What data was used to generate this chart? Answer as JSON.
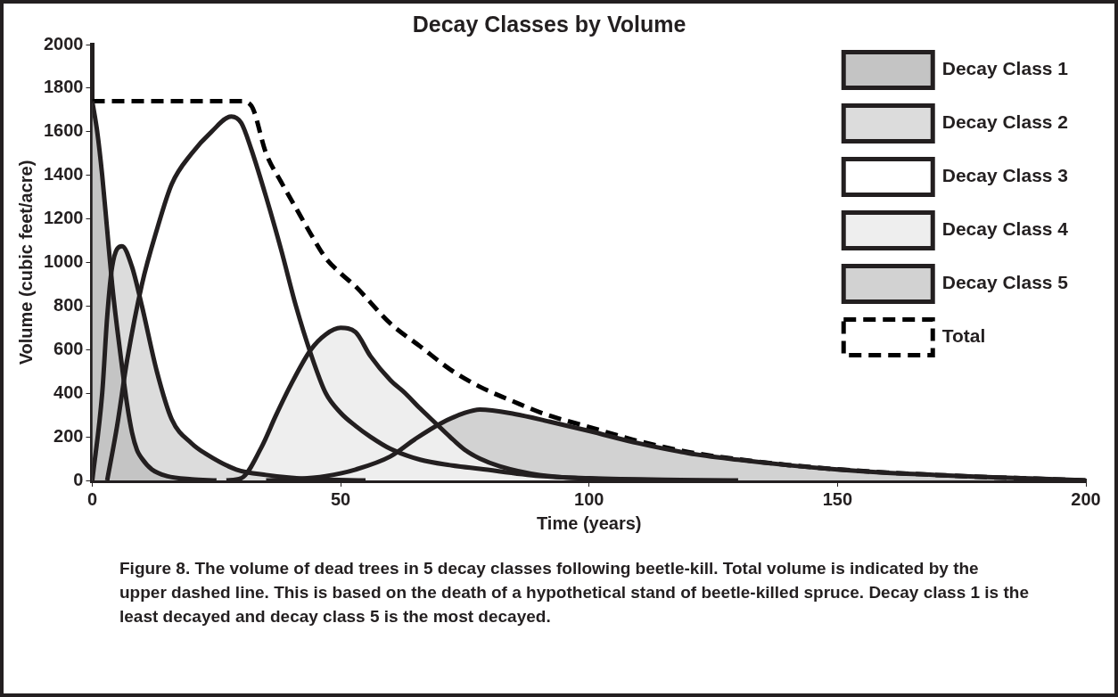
{
  "chart_data": {
    "type": "line",
    "title": "Decay Classes by Volume",
    "xlabel": "Time (years)",
    "ylabel": "Volume (cubic feet/acre)",
    "xlim": [
      0,
      200
    ],
    "xticks": [
      0,
      50,
      100,
      150,
      200
    ],
    "ylim": [
      0,
      2000
    ],
    "yticks": [
      0,
      200,
      400,
      600,
      800,
      1000,
      1200,
      1400,
      1600,
      1800,
      2000
    ],
    "grid": false,
    "legend": "top right",
    "marker": "none",
    "series": [
      {
        "name": "Decay Class 1",
        "type": "area",
        "color": "#c4c4c4",
        "x": [
          0,
          1,
          2,
          3,
          4,
          5,
          6,
          7,
          8,
          9,
          10,
          12,
          15,
          20,
          25
        ],
        "values": [
          1740,
          1600,
          1400,
          1150,
          900,
          700,
          520,
          350,
          220,
          140,
          100,
          50,
          20,
          5,
          0
        ]
      },
      {
        "name": "Decay Class 2",
        "type": "area",
        "color": "#dcdcdc",
        "x": [
          0,
          2,
          3,
          4,
          6,
          8,
          10,
          13,
          16,
          20,
          23,
          29,
          35,
          45,
          55
        ],
        "values": [
          0,
          400,
          750,
          980,
          1075,
          980,
          800,
          500,
          280,
          170,
          120,
          50,
          25,
          5,
          0
        ]
      },
      {
        "name": "Decay Class 3",
        "type": "line",
        "color": "#231f20",
        "x": [
          3,
          5,
          7,
          10,
          13,
          16,
          20,
          24,
          28,
          30,
          32,
          35,
          38,
          41,
          44,
          47,
          50,
          53,
          56,
          60,
          66,
          72,
          78,
          90,
          100,
          115,
          130
        ],
        "values": [
          0,
          250,
          550,
          900,
          1150,
          1360,
          1500,
          1600,
          1670,
          1640,
          1520,
          1300,
          1060,
          800,
          580,
          400,
          310,
          250,
          200,
          145,
          95,
          70,
          53,
          20,
          10,
          3,
          0
        ]
      },
      {
        "name": "Decay Class 4",
        "type": "area",
        "color": "#eeeeee",
        "x": [
          27,
          30,
          34,
          37,
          40,
          44,
          47,
          50,
          53,
          56,
          60,
          63,
          66,
          69,
          72,
          75,
          78,
          82,
          90,
          100,
          115
        ],
        "values": [
          0,
          10,
          150,
          300,
          440,
          600,
          670,
          700,
          680,
          570,
          460,
          400,
          330,
          265,
          200,
          140,
          100,
          65,
          25,
          8,
          0
        ]
      },
      {
        "name": "Decay Class 5",
        "type": "area",
        "color": "#d2d2d2",
        "x": [
          35,
          40,
          47,
          53,
          60,
          65,
          70,
          75,
          78,
          85,
          92,
          100,
          110,
          120,
          130,
          140,
          150,
          160,
          170,
          180,
          190,
          200
        ],
        "values": [
          0,
          5,
          20,
          50,
          110,
          190,
          260,
          310,
          325,
          305,
          270,
          227,
          170,
          125,
          95,
          70,
          50,
          35,
          25,
          15,
          8,
          0
        ]
      },
      {
        "name": "Total",
        "type": "line",
        "line_style": "dashed",
        "color": "#000000",
        "x": [
          0,
          30,
          32,
          35,
          38,
          41,
          44,
          47,
          50,
          53,
          60,
          66,
          72,
          78,
          85,
          91,
          100,
          110,
          120,
          130,
          140,
          150,
          160,
          170,
          180,
          190,
          200
        ],
        "values": [
          1740,
          1740,
          1720,
          1500,
          1370,
          1250,
          1130,
          1020,
          950,
          890,
          720,
          615,
          510,
          430,
          360,
          305,
          245,
          180,
          130,
          97,
          71,
          51,
          36,
          25,
          15,
          8,
          0
        ]
      }
    ],
    "annotations": [
      "Figure 8. The volume of dead trees in 5 decay classes following beetle-kill. Total volume is indicated by the upper dashed line. This is based on the death of a hypothetical stand of beetle-killed spruce. Decay class 1 is the least decayed and decay class 5 is the most decayed."
    ]
  }
}
